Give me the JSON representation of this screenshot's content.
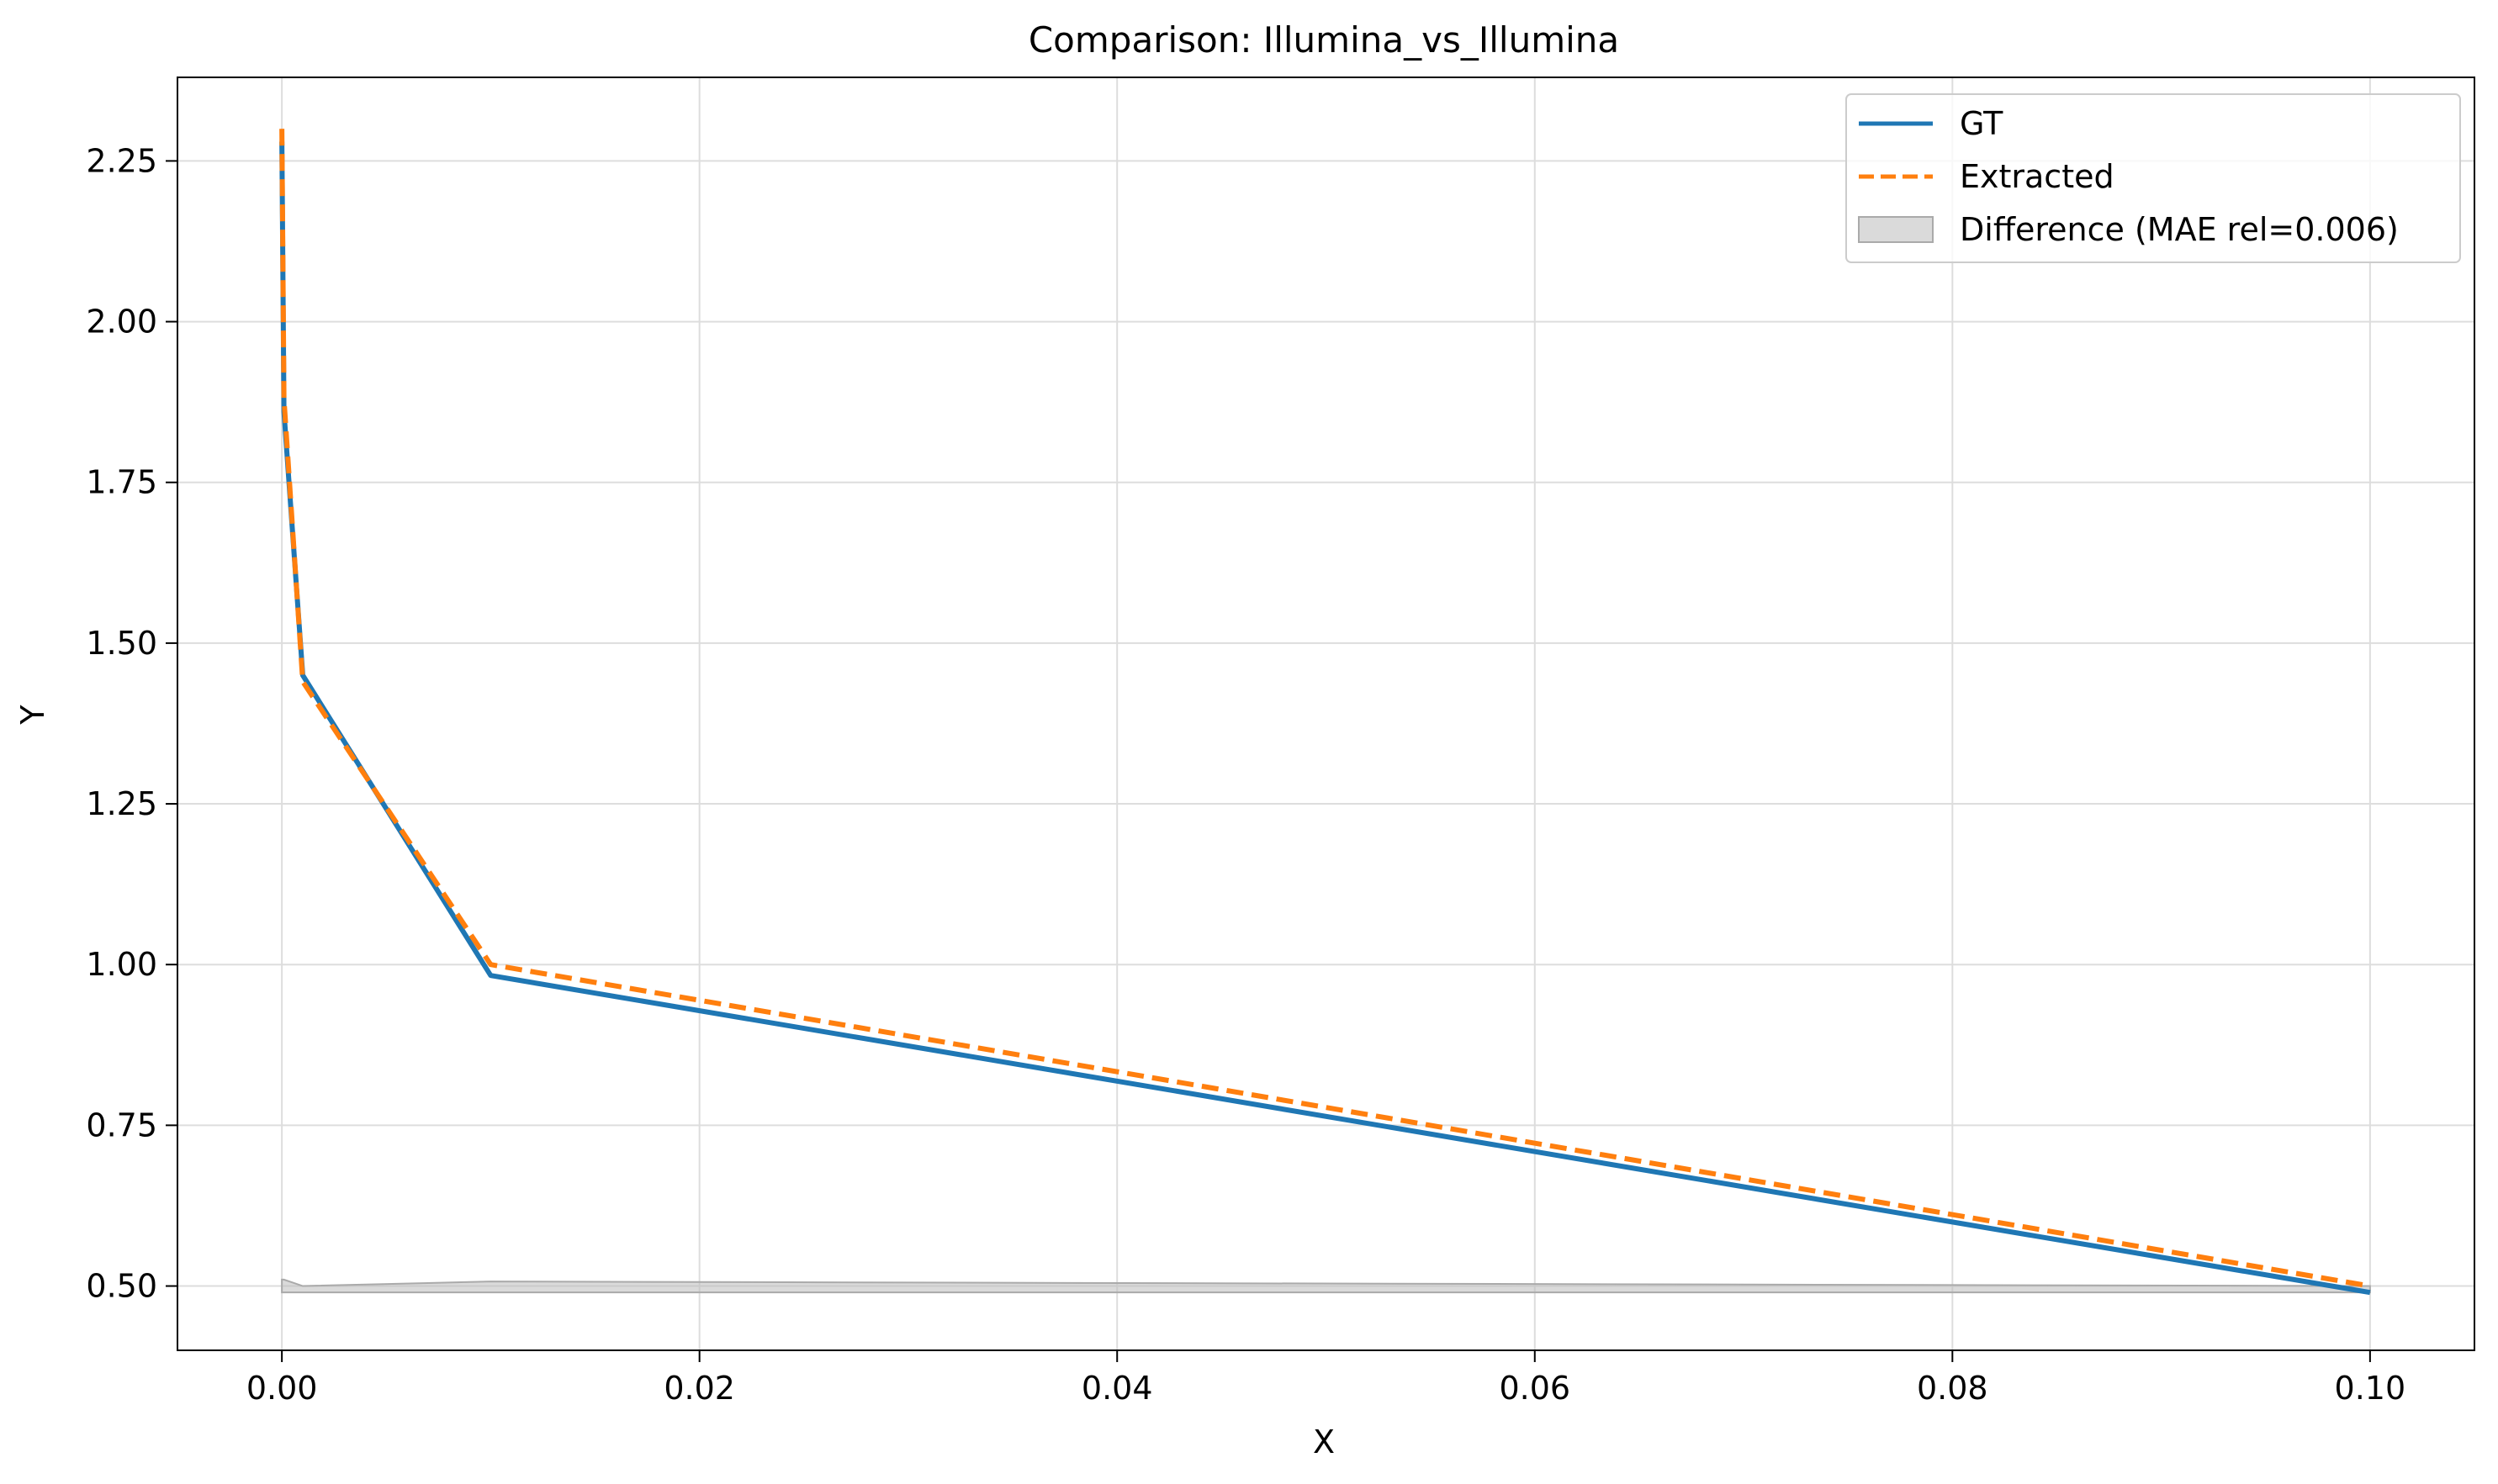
{
  "chart_data": {
    "type": "line",
    "title": "Comparison: Illumina_vs_Illumina",
    "xlabel": "X",
    "ylabel": "Y",
    "xlim": [
      -0.005,
      0.105
    ],
    "ylim": [
      0.4,
      2.38
    ],
    "xticks": [
      0.0,
      0.02,
      0.04,
      0.06,
      0.08,
      0.1
    ],
    "xtick_labels": [
      "0.00",
      "0.02",
      "0.04",
      "0.06",
      "0.08",
      "0.10"
    ],
    "yticks": [
      0.5,
      0.75,
      1.0,
      1.25,
      1.5,
      1.75,
      2.0,
      2.25
    ],
    "ytick_labels": [
      "0.50",
      "0.75",
      "1.00",
      "1.25",
      "1.50",
      "1.75",
      "2.00",
      "2.25"
    ],
    "grid": true,
    "legend_position": "top-right",
    "series": [
      {
        "name": "GT",
        "color": "#1f77b4",
        "style": "solid",
        "x": [
          0.0,
          0.0001,
          0.001,
          0.01,
          0.1
        ],
        "y": [
          2.28,
          1.86,
          1.45,
          0.983,
          0.49
        ]
      },
      {
        "name": "Extracted",
        "color": "#ff7f0e",
        "style": "dashed",
        "x": [
          0.0,
          0.0001,
          0.001,
          0.01,
          0.1
        ],
        "y": [
          2.3,
          1.88,
          1.44,
          1.0,
          0.5
        ]
      }
    ],
    "difference": {
      "name": "Difference (MAE rel=0.006)",
      "color": "#bbbbbb",
      "x": [
        0.0,
        0.0001,
        0.001,
        0.01,
        0.1
      ],
      "lower": [
        0.49,
        0.49,
        0.49,
        0.49,
        0.49
      ],
      "upper": [
        0.51,
        0.51,
        0.5,
        0.507,
        0.5
      ]
    }
  }
}
